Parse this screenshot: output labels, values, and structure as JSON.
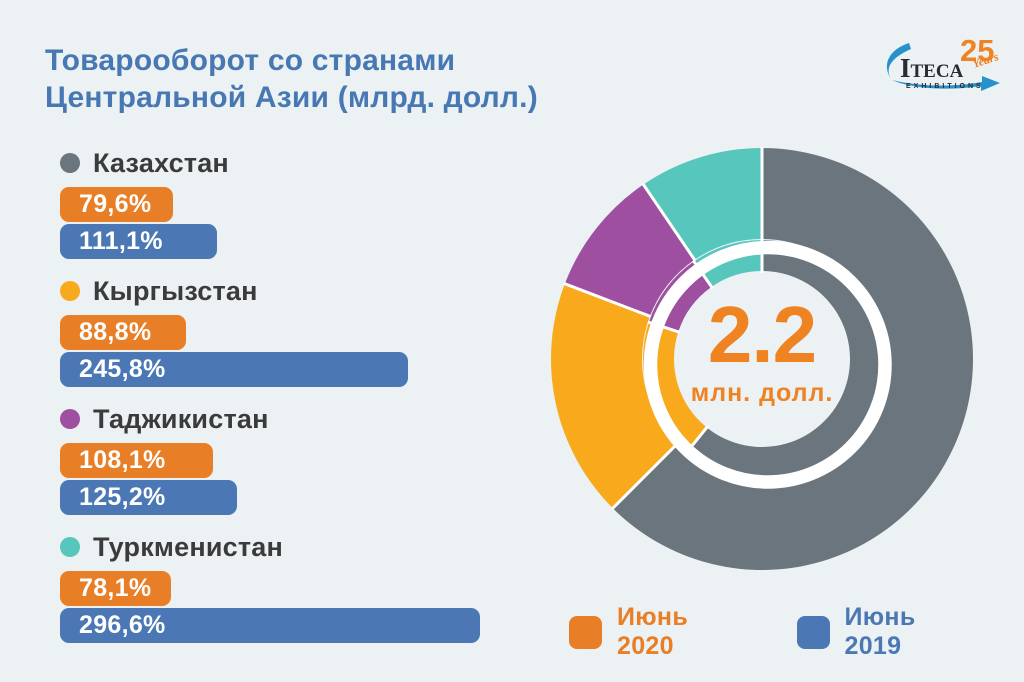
{
  "page": {
    "background": "#ECF1F4"
  },
  "title": {
    "line1": "Товарооборот со странами",
    "line2": "Центральной Азии (млрд. долл.)",
    "color": "#4878B3"
  },
  "logo": {
    "name": "Iteca",
    "years_number": "25",
    "years_word": "Years",
    "subtitle": "EXHIBITIONS",
    "accent_color": "#EF8221",
    "swoosh_color": "#2791CC",
    "text_color": "#2A2A32"
  },
  "legend": [
    {
      "label": "Июнь 2020",
      "color": "#E87E25"
    },
    {
      "label": "Июнь 2019",
      "color": "#4B78B4"
    }
  ],
  "chart_data": {
    "type": "bar",
    "title": "Товарооборот со странами Центральной Азии (млрд. долл.)",
    "categories": [
      "Казахстан",
      "Кыргызстан",
      "Таджикистан",
      "Туркменистан"
    ],
    "category_colors": [
      "#6B757D",
      "#F8A91C",
      "#9E4FA0",
      "#57C6BC"
    ],
    "series": [
      {
        "name": "Июнь 2020",
        "color": "#E87E25",
        "values": [
          79.6,
          88.8,
          108.1,
          78.1
        ],
        "labels": [
          "79,6%",
          "88,8%",
          "108,1%",
          "78,1%"
        ]
      },
      {
        "name": "Июнь 2019",
        "color": "#4B78B4",
        "values": [
          111.1,
          245.8,
          125.2,
          296.6
        ],
        "labels": [
          "111,1%",
          "245,8%",
          "125,2%",
          "296,6%"
        ]
      }
    ],
    "unit": "%",
    "xlim": [
      0,
      300
    ],
    "legend_position": "bottom",
    "donut": {
      "center_value": "2.2",
      "center_unit": "млн. долл.",
      "center_color": "#EF8221",
      "ring_outer": {
        "segments": [
          {
            "name": "Казахстан",
            "color": "#6B757D",
            "percent": 62.5
          },
          {
            "name": "Кыргызстан",
            "color": "#F8A91C",
            "percent": 18.3
          },
          {
            "name": "Таджикистан",
            "color": "#9E4FA0",
            "percent": 9.7
          },
          {
            "name": "Туркменистан",
            "color": "#57C6BC",
            "percent": 9.5
          }
        ]
      },
      "ring_inner": {
        "segments": [
          {
            "name": "Казахстан",
            "color": "#6B757D",
            "percent": 60.8
          },
          {
            "name": "Кыргызстан",
            "color": "#F8A91C",
            "percent": 19.2
          },
          {
            "name": "Таджикистан",
            "color": "#9E4FA0",
            "percent": 10.3
          },
          {
            "name": "Туркменистан",
            "color": "#57C6BC",
            "percent": 9.7
          }
        ]
      }
    }
  }
}
